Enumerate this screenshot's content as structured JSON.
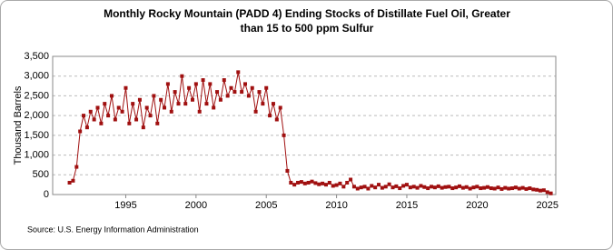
{
  "chart_data": {
    "type": "line",
    "title": "Monthly Rocky Mountain (PADD 4) Ending Stocks of Distillate Fuel Oil, Greater than 15 to 500 ppm Sulfur",
    "y_label": "Thousand Barrels",
    "source": "Source: U.S. Energy Information Administration",
    "x": [
      1991,
      1991.25,
      1991.5,
      1991.75,
      1992,
      1992.25,
      1992.5,
      1992.75,
      1993,
      1993.25,
      1993.5,
      1993.75,
      1994,
      1994.25,
      1994.5,
      1994.75,
      1995,
      1995.25,
      1995.5,
      1995.75,
      1996,
      1996.25,
      1996.5,
      1996.75,
      1997,
      1997.25,
      1997.5,
      1997.75,
      1998,
      1998.25,
      1998.5,
      1998.75,
      1999,
      1999.25,
      1999.5,
      1999.75,
      2000,
      2000.25,
      2000.5,
      2000.75,
      2001,
      2001.25,
      2001.5,
      2001.75,
      2002,
      2002.25,
      2002.5,
      2002.75,
      2003,
      2003.25,
      2003.5,
      2003.75,
      2004,
      2004.25,
      2004.5,
      2004.75,
      2005,
      2005.25,
      2005.5,
      2005.75,
      2006,
      2006.25,
      2006.5,
      2006.75,
      2007,
      2007.25,
      2007.5,
      2007.75,
      2008,
      2008.25,
      2008.5,
      2008.75,
      2009,
      2009.25,
      2009.5,
      2009.75,
      2010,
      2010.25,
      2010.5,
      2010.75,
      2011,
      2011.25,
      2011.5,
      2011.75,
      2012,
      2012.25,
      2012.5,
      2012.75,
      2013,
      2013.25,
      2013.5,
      2013.75,
      2014,
      2014.25,
      2014.5,
      2014.75,
      2015,
      2015.25,
      2015.5,
      2015.75,
      2016,
      2016.25,
      2016.5,
      2016.75,
      2017,
      2017.25,
      2017.5,
      2017.75,
      2018,
      2018.25,
      2018.5,
      2018.75,
      2019,
      2019.25,
      2019.5,
      2019.75,
      2020,
      2020.25,
      2020.5,
      2020.75,
      2021,
      2021.25,
      2021.5,
      2021.75,
      2022,
      2022.25,
      2022.5,
      2022.75,
      2023,
      2023.25,
      2023.5,
      2023.75,
      2024,
      2024.25,
      2024.5,
      2024.75,
      2025,
      2025.25
    ],
    "series": [
      {
        "name": "Ending Stocks",
        "color": "#a01010",
        "values": [
          300,
          350,
          700,
          1600,
          2000,
          1700,
          2100,
          1900,
          2200,
          1800,
          2300,
          2000,
          2500,
          1900,
          2200,
          2100,
          2700,
          1800,
          2300,
          1900,
          2400,
          1700,
          2200,
          2000,
          2500,
          1800,
          2400,
          2200,
          2800,
          2100,
          2600,
          2300,
          3000,
          2300,
          2700,
          2400,
          2800,
          2100,
          2900,
          2300,
          2800,
          2200,
          2600,
          2400,
          2900,
          2500,
          2700,
          2600,
          3100,
          2600,
          2800,
          2500,
          2700,
          2100,
          2600,
          2300,
          2700,
          2000,
          2300,
          1900,
          2200,
          1500,
          600,
          300,
          250,
          300,
          320,
          280,
          300,
          330,
          290,
          260,
          280,
          250,
          300,
          220,
          240,
          280,
          200,
          300,
          380,
          200,
          150,
          180,
          200,
          150,
          220,
          180,
          250,
          170,
          200,
          260,
          180,
          210,
          160,
          220,
          250,
          180,
          200,
          170,
          220,
          190,
          160,
          200,
          180,
          210,
          170,
          190,
          200,
          160,
          180,
          210,
          170,
          190,
          150,
          180,
          200,
          160,
          170,
          190,
          160,
          150,
          180,
          140,
          170,
          150,
          160,
          180,
          150,
          170,
          140,
          160,
          130,
          120,
          100,
          110,
          60,
          30
        ]
      }
    ],
    "xlim": [
      1989.8,
      2025.6
    ],
    "xticks": [
      1995,
      2000,
      2005,
      2010,
      2015,
      2020,
      2025
    ],
    "ylim": [
      0,
      3500
    ],
    "yticks": [
      0,
      500,
      {
        "value": 1000,
        "label": "1,000"
      },
      {
        "value": 1500,
        "label": "1,500"
      },
      {
        "value": 2000,
        "label": "2,000"
      },
      {
        "value": 2500,
        "label": "2,500"
      },
      {
        "value": 3000,
        "label": "3,000"
      },
      {
        "value": 3500,
        "label": "3,500"
      }
    ],
    "grid": true
  }
}
